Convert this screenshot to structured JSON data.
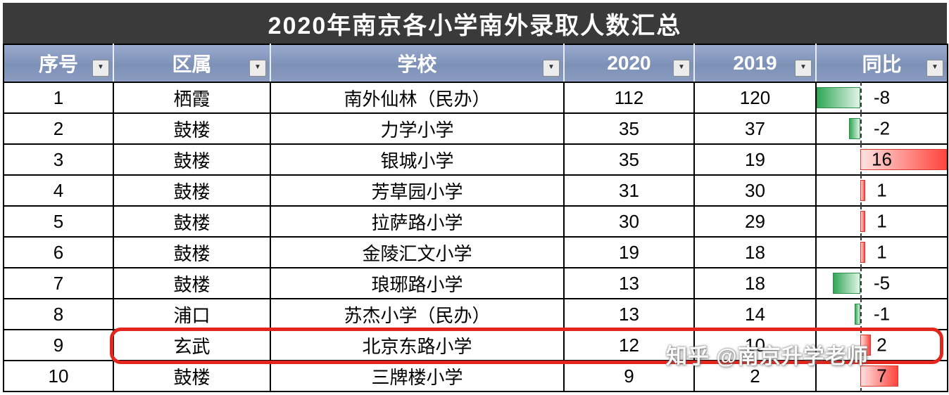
{
  "title": "2020年南京各小学南外录取人数汇总",
  "watermark": "知乎 @南京升学老师",
  "icons": {
    "filter": "▼"
  },
  "colors": {
    "title_bg": "#3a3a3a",
    "header_bg": "#8093b8",
    "positive_bar": "#ff453e",
    "negative_bar": "#31a756",
    "highlight_box": "#e3261c"
  },
  "chart_data": {
    "type": "table",
    "title": "2020年南京各小学南外录取人数汇总",
    "columns": [
      "序号",
      "区属",
      "学校",
      "2020",
      "2019",
      "同比"
    ],
    "rows": [
      [
        1,
        "栖霞",
        "南外仙林（民办）",
        112,
        120,
        -8
      ],
      [
        2,
        "鼓楼",
        "力学小学",
        35,
        37,
        -2
      ],
      [
        3,
        "鼓楼",
        "银城小学",
        35,
        19,
        16
      ],
      [
        4,
        "鼓楼",
        "芳草园小学",
        31,
        30,
        1
      ],
      [
        5,
        "鼓楼",
        "拉萨路小学",
        30,
        29,
        1
      ],
      [
        6,
        "鼓楼",
        "金陵汇文小学",
        19,
        18,
        1
      ],
      [
        7,
        "鼓楼",
        "琅琊路小学",
        13,
        18,
        -5
      ],
      [
        8,
        "浦口",
        "苏杰小学（民办）",
        13,
        14,
        -1
      ],
      [
        9,
        "玄武",
        "北京东路小学",
        12,
        10,
        2
      ],
      [
        10,
        "鼓楼",
        "三牌楼小学",
        9,
        2,
        7
      ]
    ],
    "databar": {
      "column": "同比",
      "axis_style": "dashed",
      "negative_color": "green",
      "positive_color": "red",
      "min": -8,
      "max": 16
    },
    "annotations": [
      {
        "type": "highlight-box",
        "row_number": 9,
        "school": "北京东路小学",
        "color": "red"
      }
    ],
    "legend": "none",
    "grid": "on"
  }
}
